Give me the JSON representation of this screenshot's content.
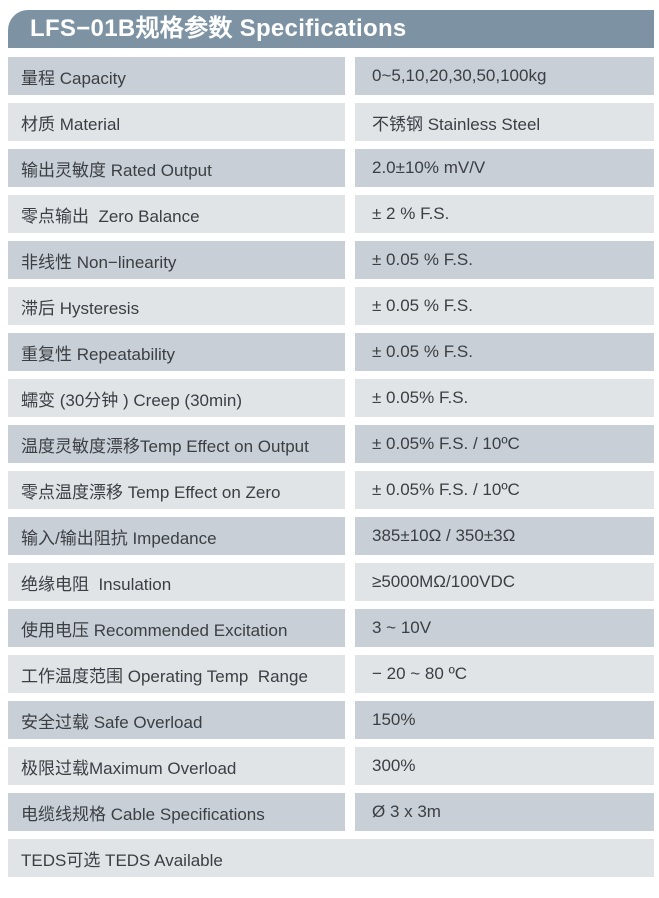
{
  "header": {
    "title": "LFS−01B规格参数 Specifications"
  },
  "colors": {
    "header_bg": "#7d93a4",
    "header_text": "#ffffff",
    "row_dark": "#c8cfd6",
    "row_light": "#e0e4e7",
    "text": "#3b3f44",
    "page_bg": "#ffffff"
  },
  "table": {
    "rows": [
      {
        "label": "量程 Capacity",
        "value": "0~5,10,20,30,50,100kg"
      },
      {
        "label": "材质 Material",
        "value": "不锈钢 Stainless Steel"
      },
      {
        "label": "输出灵敏度 Rated Output",
        "value": "2.0±10% mV/V"
      },
      {
        "label": "零点输出  Zero Balance",
        "value": "± 2 % F.S."
      },
      {
        "label": "非线性 Non−linearity",
        "value": "± 0.05 % F.S."
      },
      {
        "label": "滞后 Hysteresis",
        "value": "± 0.05 % F.S."
      },
      {
        "label": "重复性 Repeatability",
        "value": "± 0.05 % F.S."
      },
      {
        "label": "蠕变 (30分钟 ) Creep (30min)",
        "value": "± 0.05% F.S."
      },
      {
        "label": "温度灵敏度漂移Temp Effect on Output",
        "value": "± 0.05% F.S. / 10ºC"
      },
      {
        "label": "零点温度漂移 Temp Effect on Zero",
        "value": "± 0.05% F.S. / 10ºC"
      },
      {
        "label": "输入/输出阻抗 Impedance",
        "value": "385±10Ω / 350±3Ω"
      },
      {
        "label": "绝缘电阻  Insulation",
        "value": "≥5000MΩ/100VDC"
      },
      {
        "label": "使用电压 Recommended Excitation",
        "value": "3 ~ 10V"
      },
      {
        "label": "工作温度范围 Operating Temp  Range",
        "value": "− 20 ~ 80 ºC"
      },
      {
        "label": "安全过载 Safe Overload",
        "value": "150%"
      },
      {
        "label": "极限过载Maximum Overload",
        "value": "300%"
      },
      {
        "label": "电缆线规格 Cable Specifications",
        "value": "Ø 3 x 3m"
      },
      {
        "label": "TEDS可选 TEDS Available",
        "value": "",
        "full_width": true
      }
    ]
  }
}
